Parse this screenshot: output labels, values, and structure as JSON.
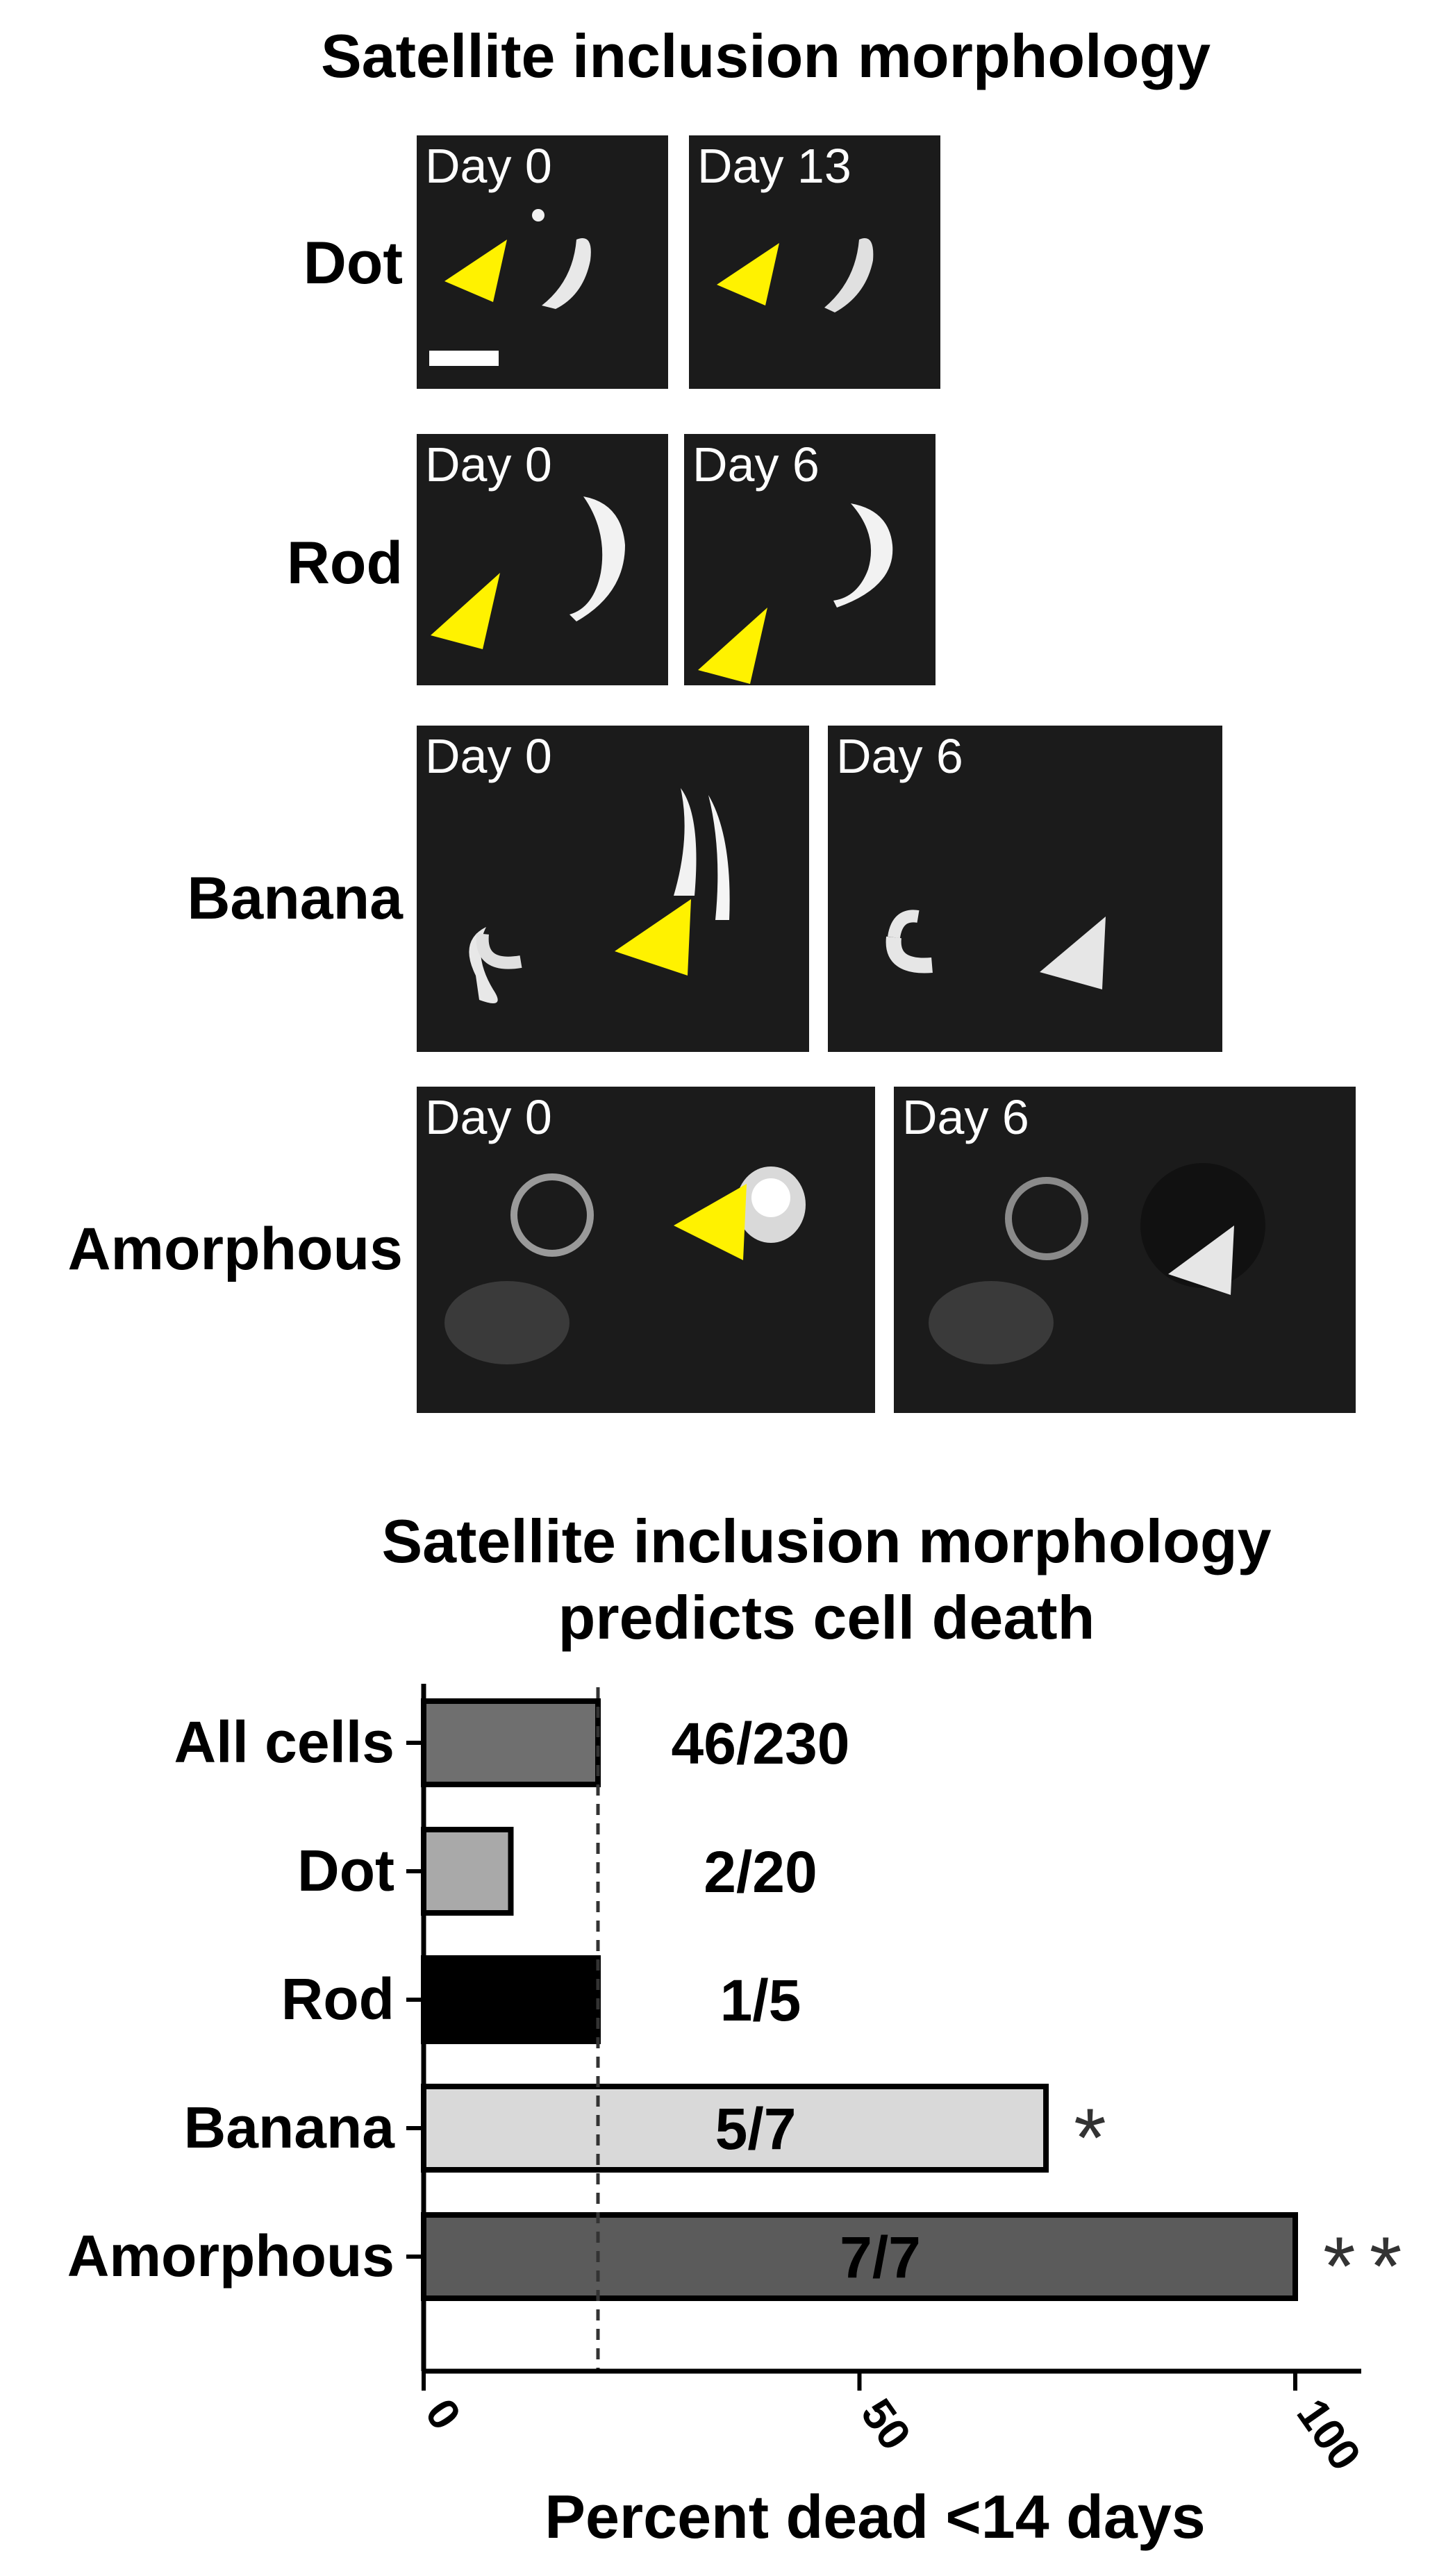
{
  "figure": {
    "title": "Satellite inclusion morphology",
    "rows": [
      {
        "label": "Dot",
        "panels": [
          {
            "day": "Day 0",
            "arrow": "yellow"
          },
          {
            "day": "Day 13",
            "arrow": "yellow"
          }
        ]
      },
      {
        "label": "Rod",
        "panels": [
          {
            "day": "Day 0",
            "arrow": "yellow"
          },
          {
            "day": "Day 6",
            "arrow": "yellow"
          }
        ]
      },
      {
        "label": "Banana",
        "panels": [
          {
            "day": "Day 0",
            "arrow": "yellow"
          },
          {
            "day": "Day 6",
            "arrow": "white"
          }
        ]
      },
      {
        "label": "Amorphous",
        "panels": [
          {
            "day": "Day 0",
            "arrow": "yellow"
          },
          {
            "day": "Day 6",
            "arrow": "white"
          }
        ]
      }
    ],
    "arrow_colors": {
      "yellow": "#fff200",
      "white": "#e6e6e6"
    }
  },
  "chart_data": {
    "type": "bar",
    "orientation": "horizontal",
    "title": "Satellite inclusion morphology predicts cell death",
    "title_lines": [
      "Satellite inclusion morphology",
      "predicts cell death"
    ],
    "categories": [
      "All cells",
      "Dot",
      "Rod",
      "Banana",
      "Amorphous"
    ],
    "values": [
      20,
      10,
      20,
      71.4,
      100
    ],
    "bar_labels": [
      "46/230",
      "2/20",
      "1/5",
      "5/7",
      "7/7"
    ],
    "significance": [
      "",
      "",
      "",
      "*",
      "**"
    ],
    "colors": [
      "#6f6f6f",
      "#a9a9a9",
      "#000000",
      "#d9d9d9",
      "#5b5b5b"
    ],
    "xlabel": "Percent dead <14 days",
    "xticks": [
      0,
      50,
      100
    ],
    "xlim": [
      0,
      108
    ],
    "reference_line": 20,
    "grid": false
  }
}
